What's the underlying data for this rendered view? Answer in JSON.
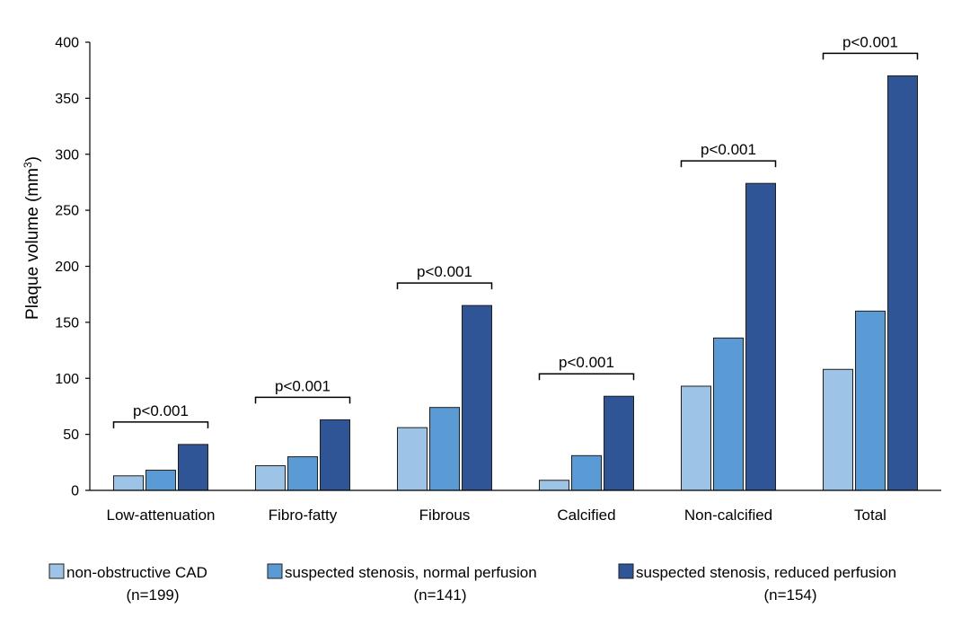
{
  "chart_data": {
    "type": "bar",
    "categories": [
      "Low-attenuation",
      "Fibro-fatty",
      "Fibrous",
      "Calcified",
      "Non-calcified",
      "Total"
    ],
    "series": [
      {
        "name": "non-obstructive CAD",
        "n": "(n=199)",
        "color": "#9dc3e6",
        "values": [
          13,
          22,
          56,
          9,
          93,
          108
        ]
      },
      {
        "name": "suspected stenosis, normal perfusion",
        "n": "(n=141)",
        "color": "#5b9bd5",
        "values": [
          18,
          30,
          74,
          31,
          136,
          160
        ]
      },
      {
        "name": "suspected stenosis, reduced perfusion",
        "n": "(n=154)",
        "color": "#2f5597",
        "values": [
          41,
          63,
          165,
          84,
          274,
          370
        ]
      }
    ],
    "ylabel": "Plaque volume (mm",
    "ylabel_sup": "3",
    "ylabel_close": ")",
    "ylim": [
      0,
      400
    ],
    "yticks": [
      "0",
      "50",
      "100",
      "150",
      "200",
      "250",
      "300",
      "350",
      "400"
    ],
    "significance": [
      "p<0.001",
      "p<0.001",
      "p<0.001",
      "p<0.001",
      "p<0.001",
      "p<0.001"
    ],
    "legend_position": "bottom",
    "grid": false
  }
}
